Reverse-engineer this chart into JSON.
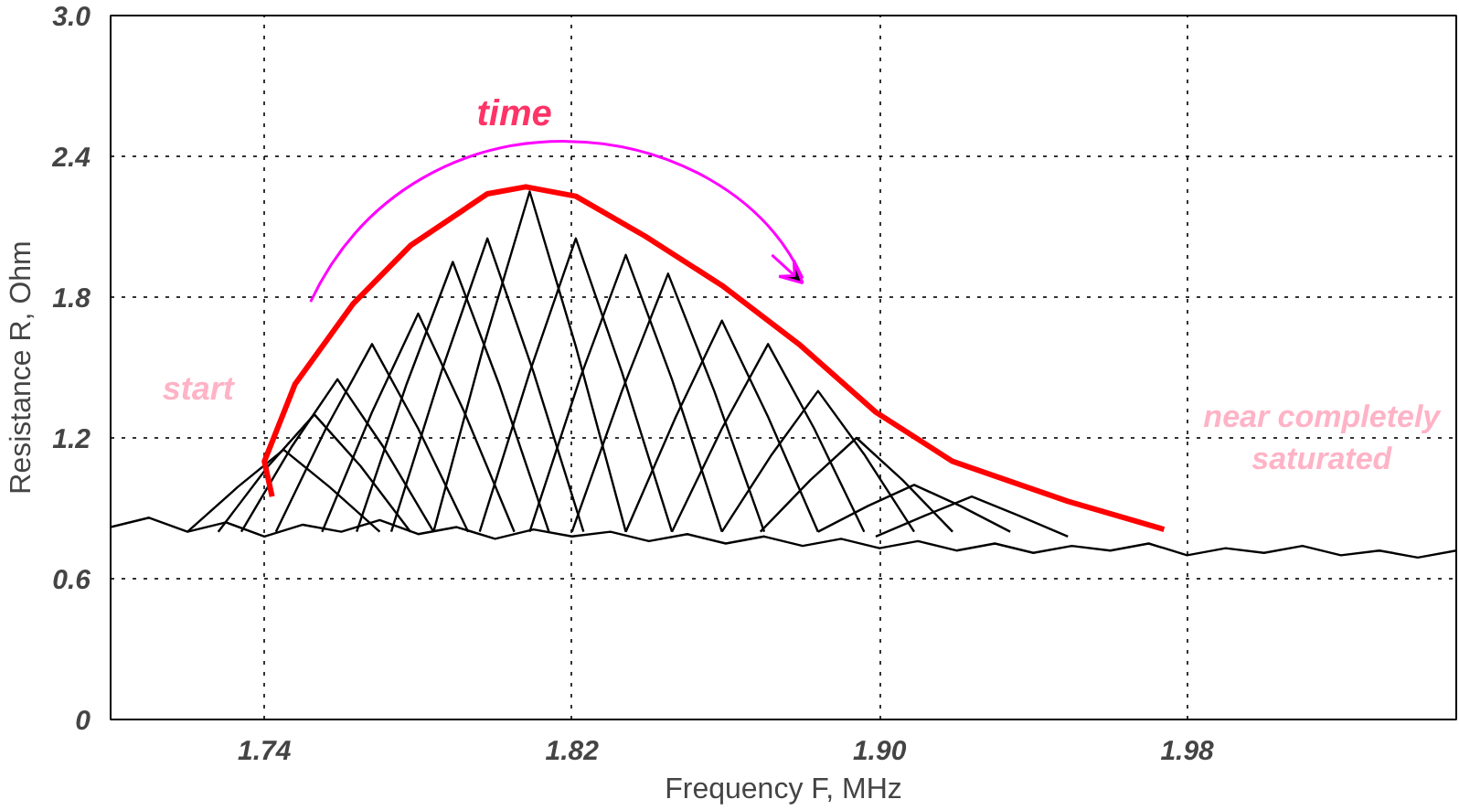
{
  "chart_data": {
    "type": "line",
    "xlabel": "Frequency F, MHz",
    "ylabel": "Resistance R, Ohm",
    "xlim": [
      1.7,
      2.05
    ],
    "ylim": [
      0,
      3.0
    ],
    "xticks": [
      1.74,
      1.82,
      {
        "value": 1.9,
        "label": "1.90"
      },
      1.98
    ],
    "yticks": [
      0,
      0.6,
      1.2,
      1.8,
      2.4,
      {
        "value": 3.0,
        "label": "3.0"
      }
    ],
    "grid": true,
    "line_style": "solid",
    "annotations": [
      "time",
      "start",
      "near completely\nsaturated"
    ],
    "series": [
      {
        "color": "#000000",
        "x": [
          1.7,
          1.71,
          1.72,
          1.73,
          1.74,
          1.75,
          1.76,
          1.77,
          1.78,
          1.79,
          1.8,
          1.81,
          1.82,
          1.83,
          1.84,
          1.85,
          1.86,
          1.87,
          1.88,
          1.89,
          1.9,
          1.91,
          1.92,
          1.93,
          1.94,
          1.95,
          1.96,
          1.97,
          1.98,
          1.99,
          2.0,
          2.01,
          2.02,
          2.03,
          2.04,
          2.05
        ],
        "values": [
          0.82,
          0.86,
          0.8,
          0.84,
          0.78,
          0.83,
          0.8,
          0.85,
          0.79,
          0.82,
          0.77,
          0.81,
          0.78,
          0.8,
          0.76,
          0.79,
          0.75,
          0.78,
          0.74,
          0.77,
          0.73,
          0.76,
          0.72,
          0.75,
          0.71,
          0.74,
          0.72,
          0.75,
          0.7,
          0.73,
          0.71,
          0.74,
          0.7,
          0.72,
          0.69,
          0.72
        ]
      },
      {
        "color": "#000000",
        "x": [
          1.72,
          1.733,
          1.745,
          1.757,
          1.77
        ],
        "values": [
          0.8,
          0.99,
          1.15,
          0.99,
          0.8
        ]
      },
      {
        "color": "#000000",
        "x": [
          1.728,
          1.741,
          1.753,
          1.765,
          1.778
        ],
        "values": [
          0.8,
          1.08,
          1.3,
          1.08,
          0.8
        ]
      },
      {
        "color": "#000000",
        "x": [
          1.734,
          1.747,
          1.759,
          1.771,
          1.784
        ],
        "values": [
          0.8,
          1.16,
          1.45,
          1.16,
          0.8
        ]
      },
      {
        "color": "#000000",
        "x": [
          1.743,
          1.756,
          1.768,
          1.78,
          1.793
        ],
        "values": [
          0.8,
          1.24,
          1.6,
          1.24,
          0.8
        ]
      },
      {
        "color": "#000000",
        "x": [
          1.755,
          1.768,
          1.78,
          1.792,
          1.805
        ],
        "values": [
          0.8,
          1.31,
          1.73,
          1.31,
          0.8
        ]
      },
      {
        "color": "#000000",
        "x": [
          1.764,
          1.777,
          1.789,
          1.801,
          1.814
        ],
        "values": [
          0.8,
          1.43,
          1.95,
          1.43,
          0.8
        ]
      },
      {
        "color": "#000000",
        "x": [
          1.773,
          1.786,
          1.798,
          1.81,
          1.823
        ],
        "values": [
          0.8,
          1.48,
          2.05,
          1.48,
          0.8
        ]
      },
      {
        "color": "#000000",
        "x": [
          1.784,
          1.797,
          1.809,
          1.821,
          1.834
        ],
        "values": [
          0.8,
          1.59,
          2.25,
          1.59,
          0.8
        ]
      },
      {
        "color": "#000000",
        "x": [
          1.796,
          1.809,
          1.821,
          1.833,
          1.846
        ],
        "values": [
          0.8,
          1.48,
          2.05,
          1.48,
          0.8
        ]
      },
      {
        "color": "#000000",
        "x": [
          1.809,
          1.822,
          1.834,
          1.846,
          1.859
        ],
        "values": [
          0.8,
          1.45,
          1.98,
          1.45,
          0.8
        ]
      },
      {
        "color": "#000000",
        "x": [
          1.82,
          1.833,
          1.845,
          1.857,
          1.87
        ],
        "values": [
          0.8,
          1.4,
          1.9,
          1.4,
          0.8
        ]
      },
      {
        "color": "#000000",
        "x": [
          1.834,
          1.847,
          1.859,
          1.871,
          1.884
        ],
        "values": [
          0.8,
          1.29,
          1.7,
          1.29,
          0.8
        ]
      },
      {
        "color": "#000000",
        "x": [
          1.846,
          1.859,
          1.871,
          1.883,
          1.896
        ],
        "values": [
          0.8,
          1.24,
          1.6,
          1.24,
          0.8
        ]
      },
      {
        "color": "#000000",
        "x": [
          1.859,
          1.872,
          1.884,
          1.896,
          1.909
        ],
        "values": [
          0.8,
          1.13,
          1.4,
          1.13,
          0.8
        ]
      },
      {
        "color": "#000000",
        "x": [
          1.869,
          1.882,
          1.894,
          1.906,
          1.919
        ],
        "values": [
          0.8,
          1.02,
          1.2,
          1.02,
          0.8
        ]
      },
      {
        "color": "#000000",
        "x": [
          1.884,
          1.897,
          1.909,
          1.921,
          1.934
        ],
        "values": [
          0.8,
          0.91,
          1.0,
          0.91,
          0.8
        ]
      },
      {
        "color": "#000000",
        "x": [
          1.899,
          1.912,
          1.924,
          1.936,
          1.949
        ],
        "values": [
          0.78,
          0.87,
          0.95,
          0.87,
          0.78
        ]
      },
      {
        "color": "#ff0000",
        "x": [
          1.742,
          1.74,
          1.748,
          1.763,
          1.778,
          1.798,
          1.808,
          1.821,
          1.839,
          1.859,
          1.879,
          1.899,
          1.919,
          1.949,
          1.974
        ],
        "values": [
          0.95,
          1.1,
          1.43,
          1.77,
          2.02,
          2.24,
          2.27,
          2.23,
          2.06,
          1.85,
          1.6,
          1.31,
          1.1,
          0.93,
          0.81
        ]
      }
    ]
  }
}
